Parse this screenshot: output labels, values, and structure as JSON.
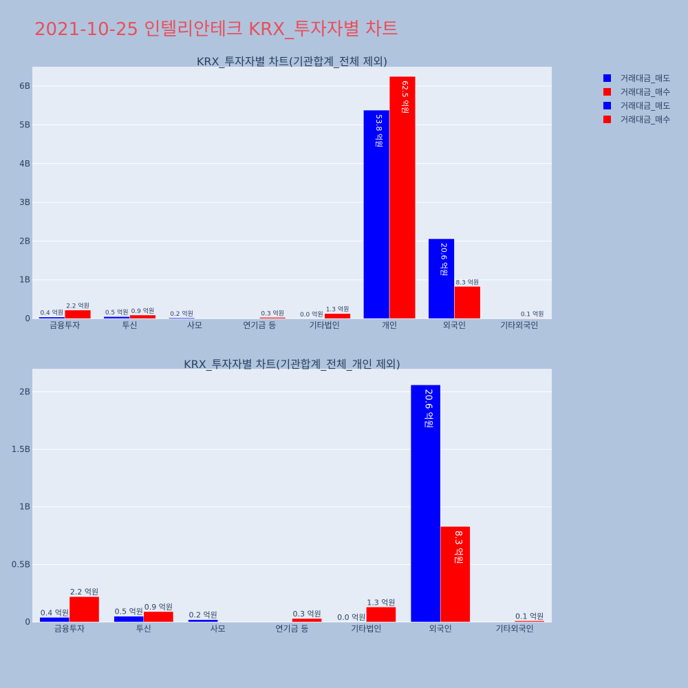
{
  "page": {
    "title": "2021-10-25 인텔리안테크 KRX_투자자별 차트"
  },
  "colors": {
    "sell": "#0000ff",
    "buy": "#ff0000",
    "plot_bg": "#e5ecf6",
    "page_bg": "#b0c4de",
    "title": "#e8505b"
  },
  "legend": {
    "placement": "top-right",
    "items": [
      {
        "label": "거래대금_매도",
        "color": "#0000ff"
      },
      {
        "label": "거래대금_매수",
        "color": "#ff0000"
      },
      {
        "label": "거래대금_매도",
        "color": "#0000ff"
      },
      {
        "label": "거래대금_매수",
        "color": "#ff0000"
      }
    ]
  },
  "chart_data": [
    {
      "type": "bar",
      "title": "KRX_투자자별 차트(기관합계_전체 제외)",
      "categories": [
        "금융투자",
        "투신",
        "사모",
        "연기금 등",
        "기타법인",
        "개인",
        "외국인",
        "기타외국인"
      ],
      "series": [
        {
          "name": "거래대금_매도",
          "values": [
            0.04,
            0.05,
            0.02,
            0.0,
            0.0,
            5.38,
            2.06,
            0.0
          ],
          "labels": [
            "0.4 억원",
            "0.5 억원",
            "0.2 억원",
            "",
            "0.0 억원",
            "53.8 억원",
            "20.6 억원",
            ""
          ]
        },
        {
          "name": "거래대금_매수",
          "values": [
            0.22,
            0.09,
            0.0,
            0.03,
            0.13,
            6.25,
            0.83,
            0.01
          ],
          "labels": [
            "2.2 억원",
            "0.9 억원",
            "",
            "0.3 억원",
            "1.3 억원",
            "62.5 억원",
            "8.3 억원",
            "0.1 억원"
          ]
        }
      ],
      "ylim": [
        0,
        6.5
      ],
      "yticks": [
        0,
        1,
        2,
        3,
        4,
        5,
        6
      ],
      "ytick_labels": [
        "0",
        "1B",
        "2B",
        "3B",
        "4B",
        "5B",
        "6B"
      ],
      "grid": true
    },
    {
      "type": "bar",
      "title": "KRX_투자자별 차트(기관합계_전체_개인 제외)",
      "categories": [
        "금융투자",
        "투신",
        "사모",
        "연기금 등",
        "기타법인",
        "외국인",
        "기타외국인"
      ],
      "series": [
        {
          "name": "거래대금_매도",
          "values": [
            0.04,
            0.05,
            0.02,
            0.0,
            0.0,
            2.06,
            0.0
          ],
          "labels": [
            "0.4 억원",
            "0.5 억원",
            "0.2 억원",
            "",
            "0.0 억원",
            "20.6 억원",
            ""
          ]
        },
        {
          "name": "거래대금_매수",
          "values": [
            0.22,
            0.09,
            0.0,
            0.03,
            0.13,
            0.83,
            0.01
          ],
          "labels": [
            "2.2 억원",
            "0.9 억원",
            "",
            "0.3 억원",
            "1.3 억원",
            "8.3 억원",
            "0.1 억원"
          ]
        }
      ],
      "ylim": [
        0,
        2.2
      ],
      "yticks": [
        0,
        0.5,
        1,
        1.5,
        2
      ],
      "ytick_labels": [
        "0",
        "0.5B",
        "1B",
        "1.5B",
        "2B"
      ],
      "grid": true
    }
  ]
}
